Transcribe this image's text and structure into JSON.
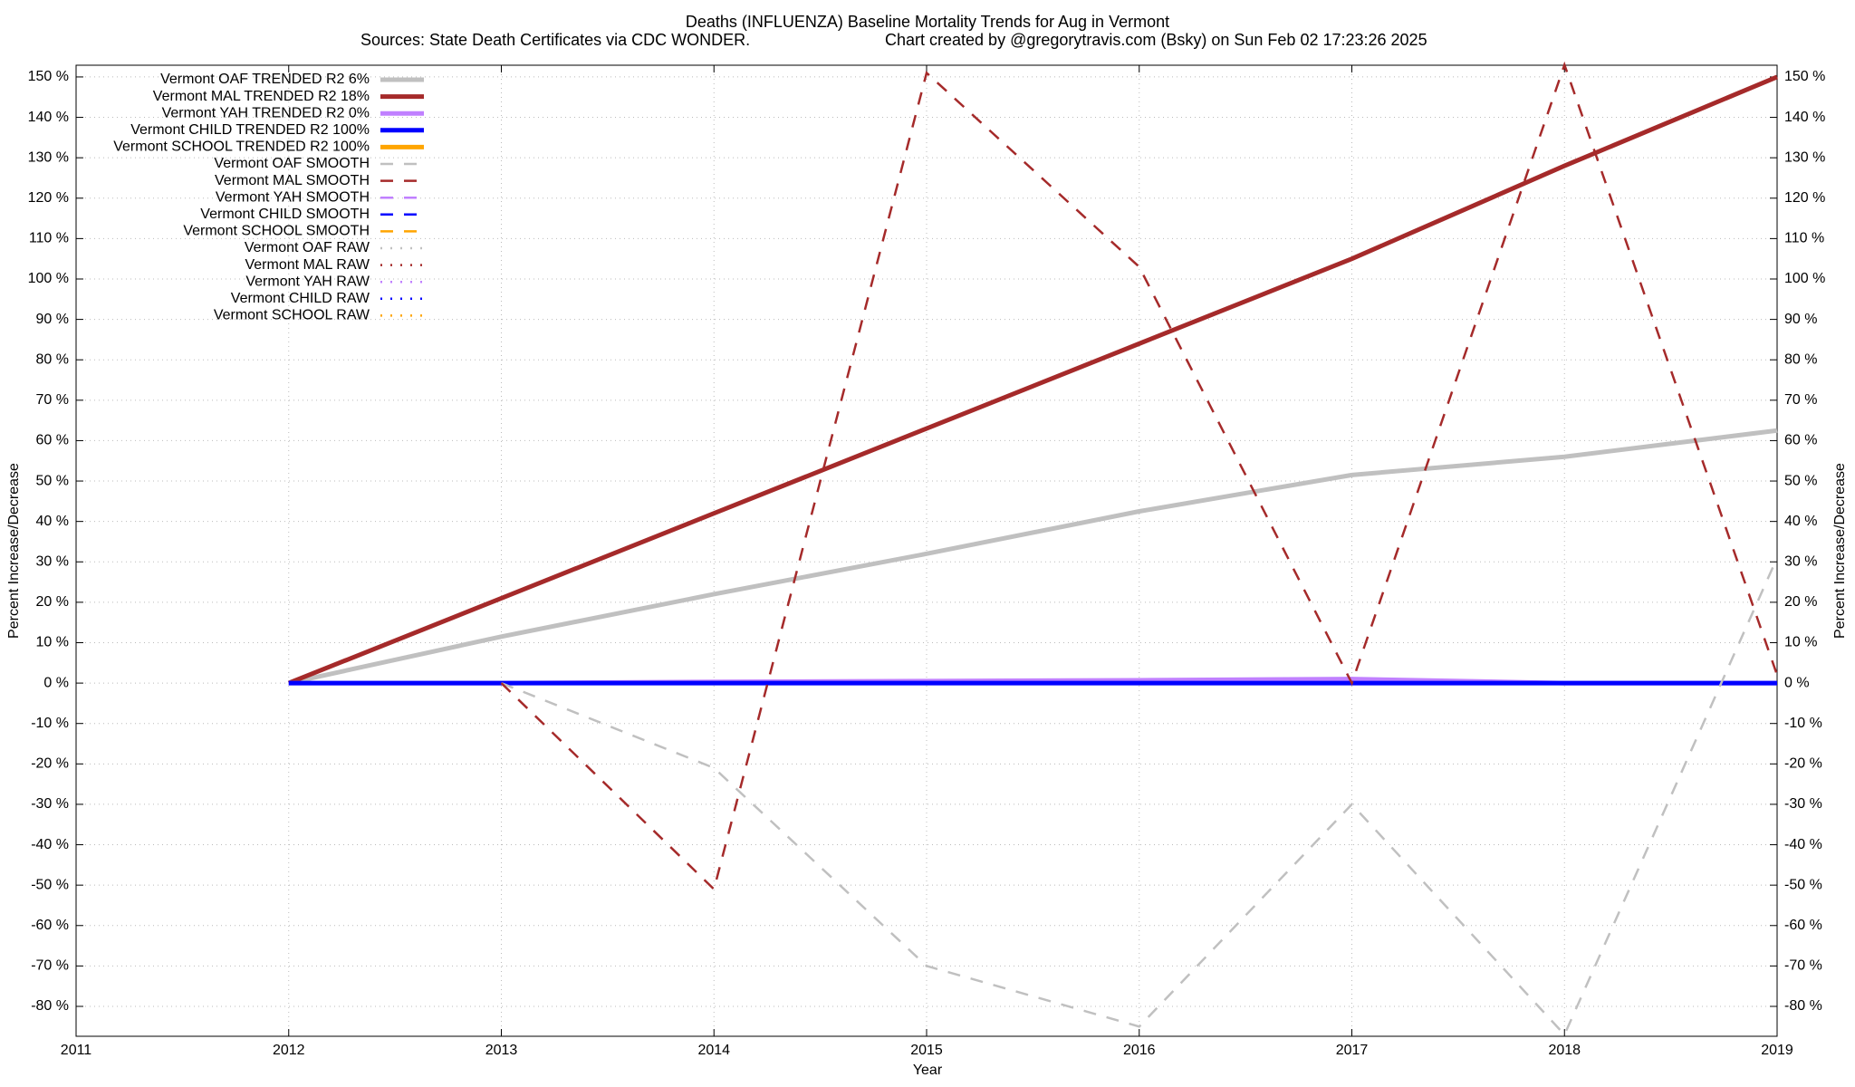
{
  "chart_data": {
    "type": "line",
    "title": "Deaths (INFLUENZA)  Baseline Mortality Trends for Aug in Vermont",
    "subtitle": "Sources: State Death Certificates via CDC WONDER.",
    "credit": "Chart created by @gregorytravis.com (Bsky) on Sun Feb 02 17:23:26 2025",
    "xlabel": "Year",
    "ylabel": "Percent Increase/Decrease",
    "xlim": [
      2011,
      2019
    ],
    "xticks": [
      2011,
      2012,
      2013,
      2014,
      2015,
      2016,
      2017,
      2018,
      2019
    ],
    "ylim": [
      -87.4,
      152.9
    ],
    "yticks": [
      {
        "value": -80,
        "label": "-80 %"
      },
      {
        "value": -70,
        "label": "-70 %"
      },
      {
        "value": -60,
        "label": "-60 %"
      },
      {
        "value": -50,
        "label": "-50 %"
      },
      {
        "value": -40,
        "label": "-40 %"
      },
      {
        "value": -30,
        "label": "-30 %"
      },
      {
        "value": -20,
        "label": "-20 %"
      },
      {
        "value": -10,
        "label": "-10 %"
      },
      {
        "value": 0,
        "label": "0 %"
      },
      {
        "value": 10,
        "label": "10 %"
      },
      {
        "value": 20,
        "label": "20 %"
      },
      {
        "value": 30,
        "label": "30 %"
      },
      {
        "value": 40,
        "label": "40 %"
      },
      {
        "value": 50,
        "label": "50 %"
      },
      {
        "value": 60,
        "label": "60 %"
      },
      {
        "value": 70,
        "label": "70 %"
      },
      {
        "value": 80,
        "label": "80 %"
      },
      {
        "value": 90,
        "label": "90 %"
      },
      {
        "value": 100,
        "label": "100 %"
      },
      {
        "value": 110,
        "label": "110 %"
      },
      {
        "value": 120,
        "label": "120 %"
      },
      {
        "value": 130,
        "label": "130 %"
      },
      {
        "value": 140,
        "label": "140 %"
      },
      {
        "value": 150,
        "label": "150 %"
      }
    ],
    "grid": true,
    "legend": "top-left",
    "x": [
      2012,
      2013,
      2014,
      2015,
      2016,
      2017,
      2018,
      2019
    ],
    "series": [
      {
        "name": "Vermont OAF TRENDED R2  6%",
        "color": "#c0c0c0",
        "line_style": "solid",
        "values": [
          0,
          11.5,
          22,
          32,
          42.5,
          51.5,
          56,
          62.5
        ]
      },
      {
        "name": "Vermont MAL TRENDED R2  18%",
        "color": "#a52a2a",
        "line_style": "solid",
        "values": [
          0,
          21,
          42,
          63,
          84,
          105,
          128,
          150
        ]
      },
      {
        "name": "Vermont YAH TRENDED R2  0%",
        "color": "#c080ff",
        "line_style": "solid",
        "values": [
          0,
          0,
          0.3,
          0.5,
          0.7,
          1,
          0,
          0
        ]
      },
      {
        "name": "Vermont CHILD TRENDED R2 100%",
        "color": "#0000ff",
        "line_style": "solid",
        "values": [
          0,
          0,
          0,
          0,
          0,
          0,
          0,
          0
        ]
      },
      {
        "name": "Vermont SCHOOL TRENDED R2 100%",
        "color": "#ffa500",
        "line_style": "solid",
        "values": [
          null,
          null,
          null,
          null,
          null,
          null,
          null,
          null
        ]
      },
      {
        "name": "Vermont OAF SMOOTH",
        "color": "#c0c0c0",
        "line_style": "dashed",
        "values": [
          null,
          0,
          -21,
          -70,
          -85,
          -30,
          -87,
          31
        ]
      },
      {
        "name": "Vermont MAL SMOOTH",
        "color": "#a52a2a",
        "line_style": "dashed",
        "values": [
          null,
          0,
          -51,
          151,
          103,
          0,
          153,
          2
        ]
      },
      {
        "name": "Vermont YAH SMOOTH",
        "color": "#c080ff",
        "line_style": "dashed",
        "values": [
          null,
          null,
          null,
          null,
          null,
          null,
          null,
          null
        ]
      },
      {
        "name": "Vermont CHILD SMOOTH",
        "color": "#0000ff",
        "line_style": "dashed",
        "values": [
          null,
          null,
          null,
          null,
          null,
          null,
          null,
          null
        ]
      },
      {
        "name": "Vermont SCHOOL SMOOTH",
        "color": "#ffa500",
        "line_style": "dashed",
        "values": [
          null,
          null,
          null,
          null,
          null,
          null,
          null,
          null
        ]
      },
      {
        "name": "Vermont OAF RAW",
        "color": "#c0c0c0",
        "line_style": "dotted",
        "values": [
          null,
          null,
          null,
          null,
          null,
          null,
          null,
          null
        ]
      },
      {
        "name": "Vermont MAL RAW",
        "color": "#a52a2a",
        "line_style": "dotted",
        "values": [
          null,
          null,
          null,
          null,
          null,
          null,
          null,
          null
        ]
      },
      {
        "name": "Vermont YAH RAW",
        "color": "#c080ff",
        "line_style": "dotted",
        "values": [
          null,
          null,
          null,
          null,
          null,
          null,
          null,
          null
        ]
      },
      {
        "name": "Vermont CHILD RAW",
        "color": "#0000ff",
        "line_style": "dotted",
        "values": [
          null,
          null,
          null,
          null,
          null,
          null,
          null,
          null
        ]
      },
      {
        "name": "Vermont SCHOOL RAW",
        "color": "#ffa500",
        "line_style": "dotted",
        "values": [
          null,
          null,
          null,
          null,
          null,
          null,
          null,
          null
        ]
      }
    ]
  }
}
